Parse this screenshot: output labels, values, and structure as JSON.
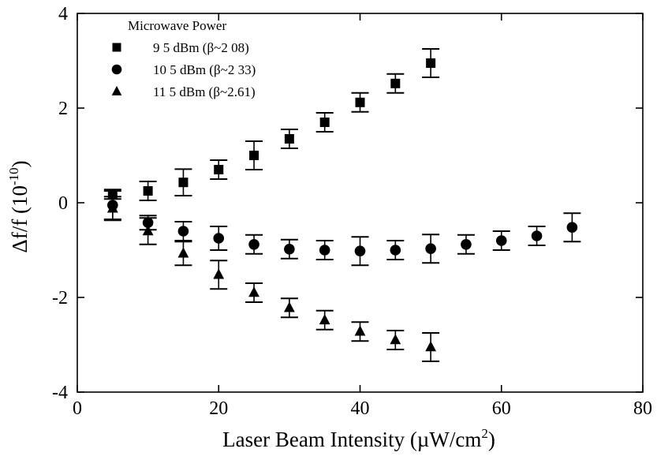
{
  "chart_data": {
    "type": "scatter",
    "xlabel": "Laser Beam Intensity (µW/cm",
    "xlabel_sup": "2",
    "xlabel_end": ")",
    "ylabel": "Δf/f (10",
    "ylabel_sup": "-10",
    "ylabel_end": ")",
    "xlim": [
      0,
      80
    ],
    "ylim": [
      -4,
      4
    ],
    "xticks": [
      0,
      20,
      40,
      60,
      80
    ],
    "yticks": [
      -4,
      -2,
      0,
      2,
      4
    ],
    "grid": false,
    "legend": {
      "title": "Microwave Power",
      "placement": "top-left"
    },
    "series": [
      {
        "name": "9 5 dBm (β~2 08)",
        "marker": "square",
        "x": [
          5,
          10,
          15,
          20,
          25,
          30,
          35,
          40,
          45,
          50
        ],
        "y": [
          0.18,
          0.25,
          0.43,
          0.7,
          1.0,
          1.35,
          1.7,
          2.12,
          2.52,
          2.95
        ],
        "err": [
          0.1,
          0.2,
          0.28,
          0.2,
          0.3,
          0.2,
          0.2,
          0.2,
          0.2,
          0.3
        ]
      },
      {
        "name": "10 5 dBm (β~2 33)",
        "marker": "circle",
        "x": [
          5,
          10,
          15,
          20,
          25,
          30,
          35,
          40,
          45,
          50,
          55,
          60,
          65,
          70
        ],
        "y": [
          -0.05,
          -0.42,
          -0.6,
          -0.75,
          -0.88,
          -0.98,
          -1.0,
          -1.02,
          -1.0,
          -0.97,
          -0.88,
          -0.8,
          -0.7,
          -0.52
        ],
        "err": [
          0.3,
          0.15,
          0.2,
          0.25,
          0.2,
          0.2,
          0.2,
          0.3,
          0.2,
          0.3,
          0.2,
          0.2,
          0.2,
          0.3
        ]
      },
      {
        "name": "11 5 dBm (β~2.61)",
        "marker": "triangle",
        "x": [
          5,
          10,
          15,
          20,
          25,
          30,
          35,
          40,
          45,
          50
        ],
        "y": [
          -0.12,
          -0.6,
          -1.07,
          -1.52,
          -1.9,
          -2.22,
          -2.48,
          -2.72,
          -2.9,
          -3.05
        ],
        "err": [
          0.25,
          0.28,
          0.25,
          0.3,
          0.2,
          0.2,
          0.2,
          0.2,
          0.2,
          0.3
        ]
      }
    ]
  }
}
